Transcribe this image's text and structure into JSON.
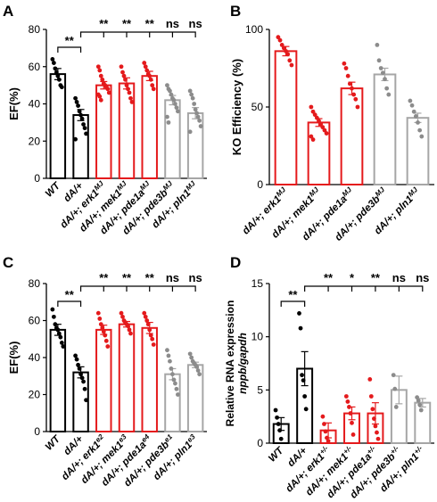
{
  "chart_data": [
    {
      "panel": "A",
      "type": "bar",
      "ylabel": "EF(%)",
      "ylim": [
        0,
        80
      ],
      "yticks": [
        0,
        20,
        40,
        60,
        80
      ],
      "categories": [
        "WT",
        "dA/+",
        "dA/+; erk1MJ",
        "dA/+; mek1MJ",
        "dA/+; pde1aMJ",
        "dA/+; pde3bMJ",
        "dA/+; pln1MJ"
      ],
      "tick_labels": [
        {
          "base": "WT",
          "sup": ""
        },
        {
          "base": "dA/+",
          "sup": ""
        },
        {
          "base": "dA/+; erk1",
          "sup": "MJ"
        },
        {
          "base": "dA/+; mek1",
          "sup": "MJ"
        },
        {
          "base": "dA/+; pde1a",
          "sup": "MJ"
        },
        {
          "base": "dA/+; pde3b",
          "sup": "MJ"
        },
        {
          "base": "dA/+; pln1",
          "sup": "MJ"
        }
      ],
      "groups": [
        "black",
        "black",
        "red",
        "red",
        "red",
        "gray",
        "gray"
      ],
      "values": [
        56,
        34,
        50,
        51,
        55,
        42,
        35
      ],
      "errors": [
        3,
        3,
        2,
        3,
        2.5,
        2.5,
        3
      ],
      "points": [
        [
          64,
          62,
          59,
          57,
          55,
          53,
          50,
          49
        ],
        [
          43,
          41,
          39,
          36,
          34,
          32,
          29,
          27,
          24,
          21
        ],
        [
          60,
          58,
          55,
          53,
          51,
          50,
          49,
          48,
          46,
          45,
          44,
          42
        ],
        [
          60,
          57,
          55,
          53,
          50,
          48,
          46,
          43,
          41
        ],
        [
          62,
          60,
          58,
          56,
          55,
          53,
          50,
          48
        ],
        [
          50,
          48,
          47,
          45,
          43,
          42,
          40,
          38,
          36,
          33,
          30
        ],
        [
          47,
          45,
          43,
          40,
          37,
          35,
          33,
          31,
          28,
          25
        ]
      ],
      "significance": {
        "pair": {
          "from": 0,
          "to": 1,
          "label": "**"
        },
        "vs_second": [
          "**",
          "**",
          "**",
          "ns",
          "ns"
        ]
      }
    },
    {
      "panel": "B",
      "type": "bar",
      "ylabel": "KO Efficiency (%)",
      "ylim": [
        0,
        100
      ],
      "yticks": [
        0,
        50,
        100
      ],
      "categories": [
        "dA/+; erk1MJ",
        "dA/+; mek1MJ",
        "dA/+; pde1aMJ",
        "dA/+; pde3bMJ",
        "dA/+; pln1MJ"
      ],
      "tick_labels": [
        {
          "base": "dA/+; erk1",
          "sup": "MJ"
        },
        {
          "base": "dA/+; mek1",
          "sup": "MJ"
        },
        {
          "base": "dA/+; pde1a",
          "sup": "MJ"
        },
        {
          "base": "dA/+; pde3b",
          "sup": "MJ"
        },
        {
          "base": "dA/+; pln1",
          "sup": "MJ"
        }
      ],
      "groups": [
        "red",
        "red",
        "red",
        "gray",
        "gray"
      ],
      "values": [
        86,
        40,
        62,
        71,
        43
      ],
      "errors": [
        3,
        2.5,
        4,
        4,
        3
      ],
      "points": [
        [
          95,
          93,
          90,
          88,
          86,
          84,
          80,
          77
        ],
        [
          50,
          47,
          45,
          43,
          41,
          39,
          37,
          35,
          33,
          31,
          29
        ],
        [
          78,
          75,
          70,
          65,
          62,
          58,
          55,
          50
        ],
        [
          90,
          80,
          75,
          72,
          68,
          62,
          58
        ],
        [
          54,
          51,
          47,
          44,
          40,
          35,
          31
        ]
      ],
      "significance": null
    },
    {
      "panel": "C",
      "type": "bar",
      "ylabel": "EF(%)",
      "ylim": [
        0,
        80
      ],
      "yticks": [
        0,
        20,
        40,
        60,
        80
      ],
      "categories": [
        "WT",
        "dA/+",
        "dA/+; erk1e2",
        "dA/+; mek1e3",
        "dA/+; pde1ae4",
        "dA/+; pde3be1",
        "dA/+; pln1e3"
      ],
      "tick_labels": [
        {
          "base": "WT",
          "sup": ""
        },
        {
          "base": "dA/+",
          "sup": ""
        },
        {
          "base": "dA/+; erk1",
          "sup": "e2"
        },
        {
          "base": "dA/+; mek1",
          "sup": "e3"
        },
        {
          "base": "dA/+; pde1a",
          "sup": "e4"
        },
        {
          "base": "dA/+; pde3b",
          "sup": "e1"
        },
        {
          "base": "dA/+; pln1",
          "sup": "e3"
        }
      ],
      "groups": [
        "black",
        "black",
        "red",
        "red",
        "red",
        "gray",
        "gray"
      ],
      "values": [
        55,
        32,
        55,
        58,
        56,
        31,
        36
      ],
      "errors": [
        3,
        3,
        2.5,
        1.5,
        3,
        3,
        1.5
      ],
      "points": [
        [
          66,
          62,
          58,
          56,
          55,
          53,
          51,
          48,
          46
        ],
        [
          41,
          39,
          36,
          34,
          31,
          29,
          27,
          23,
          17
        ],
        [
          64,
          61,
          58,
          56,
          54,
          52,
          49,
          46
        ],
        [
          64,
          62,
          60,
          59,
          58,
          57,
          55,
          53
        ],
        [
          64,
          62,
          60,
          58,
          55,
          52,
          50,
          47
        ],
        [
          44,
          41,
          38,
          34,
          31,
          28,
          26,
          23,
          20
        ],
        [
          42,
          40,
          38,
          37,
          36,
          35,
          33,
          31
        ]
      ],
      "significance": {
        "pair": {
          "from": 0,
          "to": 1,
          "label": "**"
        },
        "vs_second": [
          "**",
          "**",
          "**",
          "ns",
          "ns"
        ]
      }
    },
    {
      "panel": "D",
      "type": "bar",
      "ylabel_line1": "Relative RNA expression",
      "ylabel_line2": "nppb/gapdh",
      "ylim": [
        0,
        15
      ],
      "yticks": [
        0,
        5,
        10,
        15
      ],
      "categories": [
        "WT",
        "dA/+",
        "dA/+; erk1+/-",
        "dA/+; mek1+/-",
        "dA/+; pde1a+/-",
        "dA/+; pde3b+/-",
        "dA/+; pln1+/-"
      ],
      "tick_labels": [
        {
          "base": "WT",
          "sup": ""
        },
        {
          "base": "dA/+",
          "sup": ""
        },
        {
          "base": "dA/+; erk1",
          "sup": "+/-"
        },
        {
          "base": "dA/+; mek1",
          "sup": "+/-"
        },
        {
          "base": "dA/+; pde1a",
          "sup": "+/-"
        },
        {
          "base": "dA/+; pde3b",
          "sup": "+/-"
        },
        {
          "base": "dA/+; pln1",
          "sup": "+/-"
        }
      ],
      "groups": [
        "black",
        "black",
        "red",
        "red",
        "red",
        "gray",
        "gray"
      ],
      "values": [
        1.8,
        7,
        1.2,
        2.8,
        2.8,
        5,
        3.8
      ],
      "errors": [
        0.6,
        1.6,
        0.7,
        0.6,
        1,
        1.3,
        0.4
      ],
      "points": [
        [
          3.1,
          2.4,
          1.8,
          1.2,
          0.4
        ],
        [
          12.2,
          10.8,
          6.4,
          5.9,
          4.4,
          3.2
        ],
        [
          2.5,
          1.8,
          1.1,
          0.5,
          0.2
        ],
        [
          4.4,
          3.9,
          3.4,
          2.8,
          1.9,
          0.8
        ],
        [
          6.0,
          4.4,
          3.2,
          2.3,
          1.6,
          1.0,
          0.4
        ],
        [
          6.4,
          5.1,
          3.4
        ],
        [
          4.3,
          4.0,
          3.6,
          3.1
        ]
      ],
      "significance": {
        "pair": {
          "from": 0,
          "to": 1,
          "label": "**"
        },
        "vs_second": [
          "**",
          "*",
          "**",
          "ns",
          "ns"
        ]
      }
    }
  ],
  "panel_labels": [
    "A",
    "B",
    "C",
    "D"
  ],
  "colors": {
    "black": "#000000",
    "red": "#e41a1c",
    "gray": "#a6a6a6",
    "point_gray": "#8c8c8c"
  }
}
